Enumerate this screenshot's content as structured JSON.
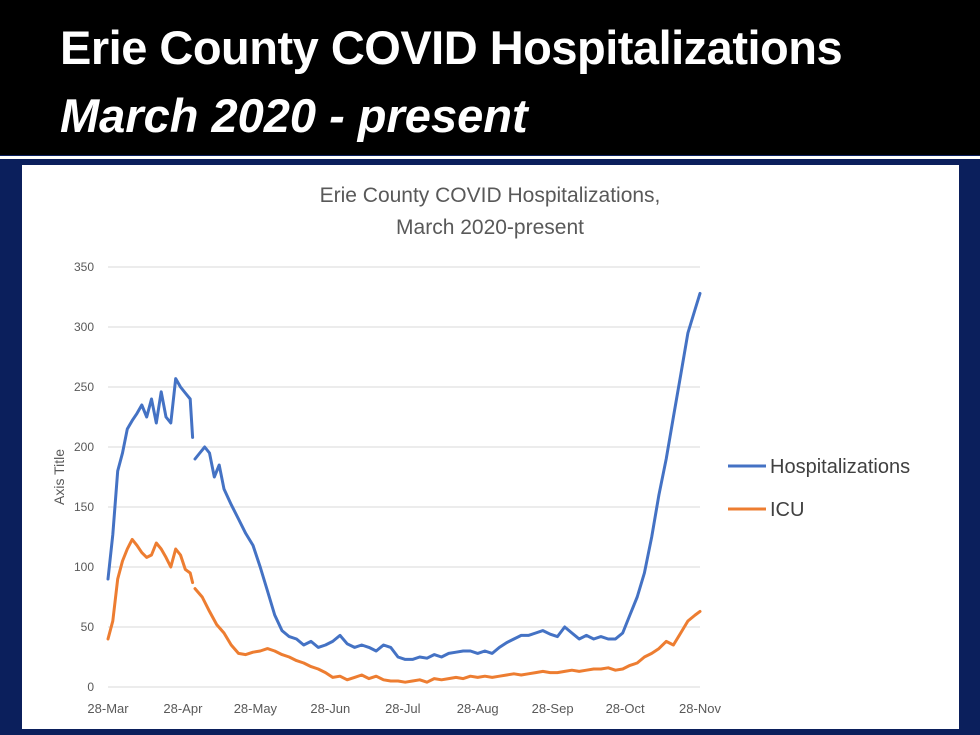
{
  "slide": {
    "title": "Erie County COVID Hospitalizations",
    "subtitle": "March 2020 - present"
  },
  "chart_data": {
    "type": "line",
    "title_line1": "Erie County COVID Hospitalizations,",
    "title_line2": "March 2020-present",
    "xlabel": "",
    "ylabel": "Axis Title",
    "ylim": [
      0,
      350
    ],
    "yticks": [
      0,
      50,
      100,
      150,
      200,
      250,
      300,
      350
    ],
    "xticks": [
      "28-Mar",
      "28-Apr",
      "28-May",
      "28-Jun",
      "28-Jul",
      "28-Aug",
      "28-Sep",
      "28-Oct",
      "28-Nov"
    ],
    "grid": "horizontal",
    "legend_position": "right",
    "series": [
      {
        "name": "Hospitalizations",
        "color": "#4472C4",
        "points": [
          [
            "2020-03-28",
            90
          ],
          [
            "2020-03-30",
            127
          ],
          [
            "2020-04-01",
            180
          ],
          [
            "2020-04-03",
            195
          ],
          [
            "2020-04-05",
            215
          ],
          [
            "2020-04-07",
            222
          ],
          [
            "2020-04-09",
            228
          ],
          [
            "2020-04-11",
            235
          ],
          [
            "2020-04-13",
            225
          ],
          [
            "2020-04-15",
            240
          ],
          [
            "2020-04-17",
            220
          ],
          [
            "2020-04-19",
            246
          ],
          [
            "2020-04-21",
            225
          ],
          [
            "2020-04-23",
            220
          ],
          [
            "2020-04-25",
            257
          ],
          [
            "2020-04-27",
            250
          ],
          [
            "2020-04-29",
            245
          ],
          [
            "2020-05-01",
            240
          ],
          [
            "2020-05-02",
            208
          ],
          null,
          [
            "2020-05-03",
            190
          ],
          [
            "2020-05-05",
            195
          ],
          [
            "2020-05-07",
            200
          ],
          [
            "2020-05-09",
            195
          ],
          [
            "2020-05-11",
            175
          ],
          [
            "2020-05-13",
            185
          ],
          [
            "2020-05-15",
            165
          ],
          [
            "2020-05-18",
            152
          ],
          [
            "2020-05-21",
            140
          ],
          [
            "2020-05-24",
            128
          ],
          [
            "2020-05-27",
            118
          ],
          [
            "2020-05-30",
            100
          ],
          [
            "2020-06-02",
            80
          ],
          [
            "2020-06-05",
            60
          ],
          [
            "2020-06-08",
            47
          ],
          [
            "2020-06-11",
            42
          ],
          [
            "2020-06-14",
            40
          ],
          [
            "2020-06-17",
            35
          ],
          [
            "2020-06-20",
            38
          ],
          [
            "2020-06-23",
            33
          ],
          [
            "2020-06-26",
            35
          ],
          [
            "2020-06-29",
            38
          ],
          [
            "2020-07-02",
            43
          ],
          [
            "2020-07-05",
            36
          ],
          [
            "2020-07-08",
            33
          ],
          [
            "2020-07-11",
            35
          ],
          [
            "2020-07-14",
            33
          ],
          [
            "2020-07-17",
            30
          ],
          [
            "2020-07-20",
            35
          ],
          [
            "2020-07-23",
            33
          ],
          [
            "2020-07-26",
            25
          ],
          [
            "2020-07-29",
            23
          ],
          [
            "2020-08-01",
            23
          ],
          [
            "2020-08-04",
            25
          ],
          [
            "2020-08-07",
            24
          ],
          [
            "2020-08-10",
            27
          ],
          [
            "2020-08-13",
            25
          ],
          [
            "2020-08-16",
            28
          ],
          [
            "2020-08-19",
            29
          ],
          [
            "2020-08-22",
            30
          ],
          [
            "2020-08-25",
            30
          ],
          [
            "2020-08-28",
            28
          ],
          [
            "2020-08-31",
            30
          ],
          [
            "2020-09-03",
            28
          ],
          [
            "2020-09-06",
            33
          ],
          [
            "2020-09-09",
            37
          ],
          [
            "2020-09-12",
            40
          ],
          [
            "2020-09-15",
            43
          ],
          [
            "2020-09-18",
            43
          ],
          [
            "2020-09-21",
            45
          ],
          [
            "2020-09-24",
            47
          ],
          [
            "2020-09-27",
            44
          ],
          [
            "2020-09-30",
            42
          ],
          [
            "2020-10-03",
            50
          ],
          [
            "2020-10-06",
            45
          ],
          [
            "2020-10-09",
            40
          ],
          [
            "2020-10-12",
            43
          ],
          [
            "2020-10-15",
            40
          ],
          [
            "2020-10-18",
            42
          ],
          [
            "2020-10-21",
            40
          ],
          [
            "2020-10-24",
            40
          ],
          [
            "2020-10-27",
            45
          ],
          [
            "2020-10-30",
            60
          ],
          [
            "2020-11-02",
            75
          ],
          [
            "2020-11-05",
            95
          ],
          [
            "2020-11-08",
            125
          ],
          [
            "2020-11-11",
            160
          ],
          [
            "2020-11-14",
            190
          ],
          [
            "2020-11-17",
            225
          ],
          [
            "2020-11-20",
            260
          ],
          [
            "2020-11-23",
            295
          ],
          [
            "2020-11-26",
            315
          ],
          [
            "2020-11-28",
            328
          ]
        ]
      },
      {
        "name": "ICU",
        "color": "#ED7D31",
        "points": [
          [
            "2020-03-28",
            40
          ],
          [
            "2020-03-30",
            55
          ],
          [
            "2020-04-01",
            90
          ],
          [
            "2020-04-03",
            105
          ],
          [
            "2020-04-05",
            115
          ],
          [
            "2020-04-07",
            123
          ],
          [
            "2020-04-09",
            118
          ],
          [
            "2020-04-11",
            112
          ],
          [
            "2020-04-13",
            108
          ],
          [
            "2020-04-15",
            110
          ],
          [
            "2020-04-17",
            120
          ],
          [
            "2020-04-19",
            115
          ],
          [
            "2020-04-21",
            108
          ],
          [
            "2020-04-23",
            100
          ],
          [
            "2020-04-25",
            115
          ],
          [
            "2020-04-27",
            110
          ],
          [
            "2020-04-29",
            98
          ],
          [
            "2020-05-01",
            95
          ],
          [
            "2020-05-02",
            87
          ],
          null,
          [
            "2020-05-03",
            82
          ],
          [
            "2020-05-06",
            75
          ],
          [
            "2020-05-09",
            63
          ],
          [
            "2020-05-12",
            52
          ],
          [
            "2020-05-15",
            45
          ],
          [
            "2020-05-18",
            35
          ],
          [
            "2020-05-21",
            28
          ],
          [
            "2020-05-24",
            27
          ],
          [
            "2020-05-27",
            29
          ],
          [
            "2020-05-30",
            30
          ],
          [
            "2020-06-02",
            32
          ],
          [
            "2020-06-05",
            30
          ],
          [
            "2020-06-08",
            27
          ],
          [
            "2020-06-11",
            25
          ],
          [
            "2020-06-14",
            22
          ],
          [
            "2020-06-17",
            20
          ],
          [
            "2020-06-20",
            17
          ],
          [
            "2020-06-23",
            15
          ],
          [
            "2020-06-26",
            12
          ],
          [
            "2020-06-29",
            8
          ],
          [
            "2020-07-02",
            9
          ],
          [
            "2020-07-05",
            6
          ],
          [
            "2020-07-08",
            8
          ],
          [
            "2020-07-11",
            10
          ],
          [
            "2020-07-14",
            7
          ],
          [
            "2020-07-17",
            9
          ],
          [
            "2020-07-20",
            6
          ],
          [
            "2020-07-23",
            5
          ],
          [
            "2020-07-26",
            5
          ],
          [
            "2020-07-29",
            4
          ],
          [
            "2020-08-01",
            5
          ],
          [
            "2020-08-04",
            6
          ],
          [
            "2020-08-07",
            4
          ],
          [
            "2020-08-10",
            7
          ],
          [
            "2020-08-13",
            6
          ],
          [
            "2020-08-16",
            7
          ],
          [
            "2020-08-19",
            8
          ],
          [
            "2020-08-22",
            7
          ],
          [
            "2020-08-25",
            9
          ],
          [
            "2020-08-28",
            8
          ],
          [
            "2020-08-31",
            9
          ],
          [
            "2020-09-03",
            8
          ],
          [
            "2020-09-06",
            9
          ],
          [
            "2020-09-09",
            10
          ],
          [
            "2020-09-12",
            11
          ],
          [
            "2020-09-15",
            10
          ],
          [
            "2020-09-18",
            11
          ],
          [
            "2020-09-21",
            12
          ],
          [
            "2020-09-24",
            13
          ],
          [
            "2020-09-27",
            12
          ],
          [
            "2020-09-30",
            12
          ],
          [
            "2020-10-03",
            13
          ],
          [
            "2020-10-06",
            14
          ],
          [
            "2020-10-09",
            13
          ],
          [
            "2020-10-12",
            14
          ],
          [
            "2020-10-15",
            15
          ],
          [
            "2020-10-18",
            15
          ],
          [
            "2020-10-21",
            16
          ],
          [
            "2020-10-24",
            14
          ],
          [
            "2020-10-27",
            15
          ],
          [
            "2020-10-30",
            18
          ],
          [
            "2020-11-02",
            20
          ],
          [
            "2020-11-05",
            25
          ],
          [
            "2020-11-08",
            28
          ],
          [
            "2020-11-11",
            32
          ],
          [
            "2020-11-14",
            38
          ],
          [
            "2020-11-17",
            35
          ],
          [
            "2020-11-20",
            45
          ],
          [
            "2020-11-23",
            55
          ],
          [
            "2020-11-26",
            60
          ],
          [
            "2020-11-28",
            63
          ]
        ]
      }
    ]
  }
}
